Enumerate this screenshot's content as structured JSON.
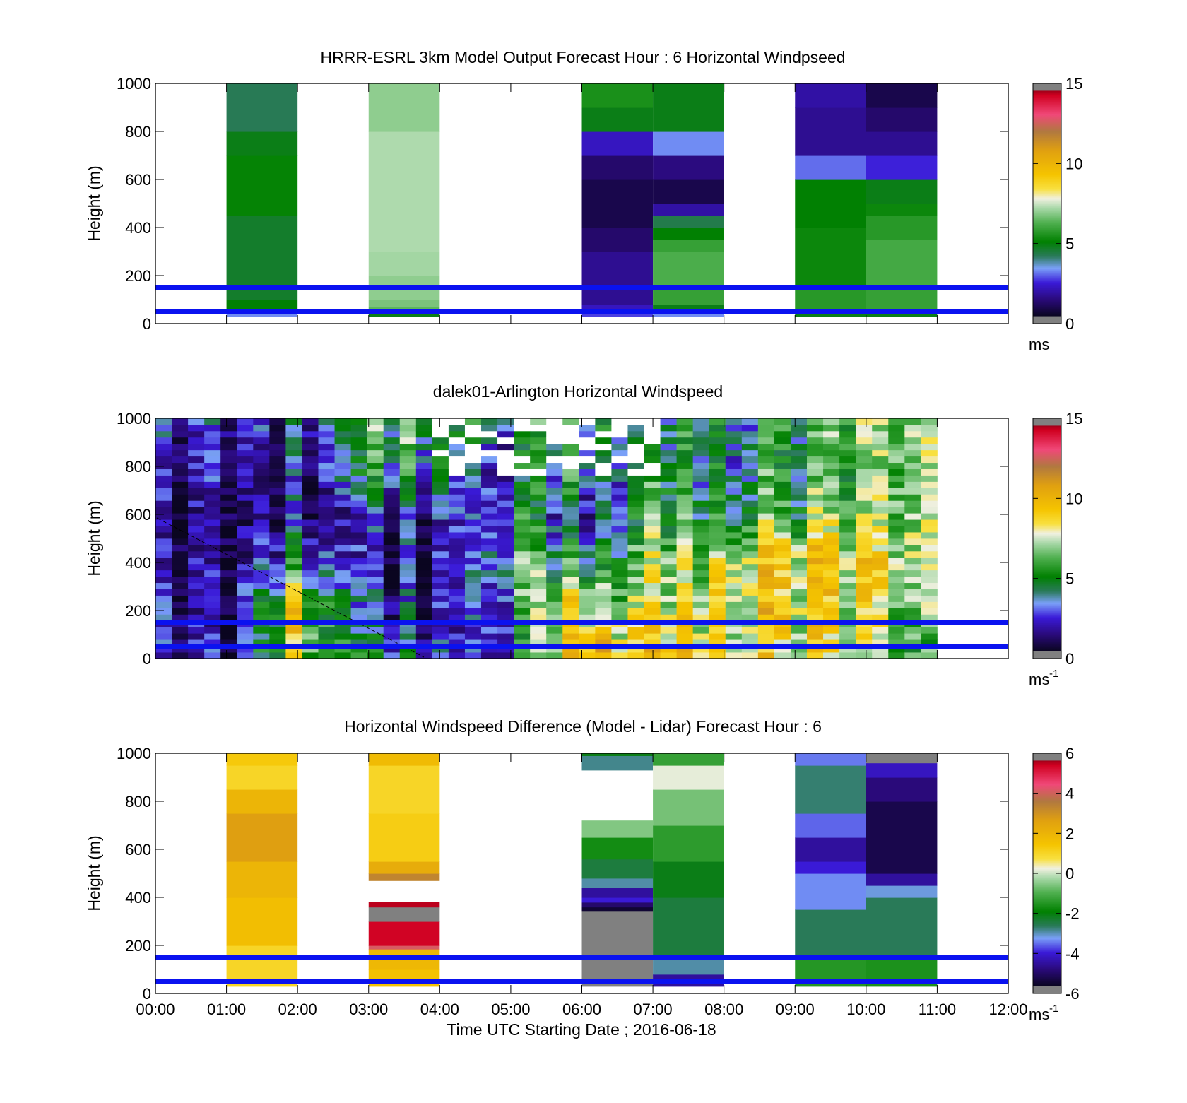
{
  "chart_data": [
    {
      "type": "heatmap",
      "title": "HRRR-ESRL 3km Model Output   Forecast Hour : 6 Horizontal Windpseed",
      "ylabel": "Height (m)",
      "xlabel": "",
      "ylim": [
        0,
        1000
      ],
      "y_ticks": [
        "0",
        "200",
        "400",
        "600",
        "800",
        "1000"
      ],
      "colorbar": {
        "ticks": [
          "0",
          "5",
          "10",
          "15"
        ],
        "range": [
          0,
          15
        ],
        "unit": "ms",
        "unit_sup": ""
      },
      "reference_lines_m": [
        50,
        150
      ],
      "columns": [
        {
          "x": [
            1,
            2
          ],
          "segments": [
            {
              "y": [
                30,
                50
              ],
              "v": 3.5
            },
            {
              "y": [
                50,
                100
              ],
              "v": 5.2
            },
            {
              "y": [
                100,
                450
              ],
              "v": 4.8
            },
            {
              "y": [
                450,
                700
              ],
              "v": 5.3
            },
            {
              "y": [
                700,
                800
              ],
              "v": 5.0
            },
            {
              "y": [
                800,
                1000
              ],
              "v": 4.4
            }
          ]
        },
        {
          "x": [
            3,
            4
          ],
          "segments": [
            {
              "y": [
                30,
                50
              ],
              "v": 5.0
            },
            {
              "y": [
                50,
                70
              ],
              "v": 6.5
            },
            {
              "y": [
                70,
                100
              ],
              "v": 6.8
            },
            {
              "y": [
                100,
                200
              ],
              "v": 7.0
            },
            {
              "y": [
                200,
                300
              ],
              "v": 7.2
            },
            {
              "y": [
                300,
                800
              ],
              "v": 7.3
            },
            {
              "y": [
                800,
                1000
              ],
              "v": 7.0
            }
          ]
        },
        {
          "x": [
            6,
            7
          ],
          "segments": [
            {
              "y": [
                30,
                60
              ],
              "v": 3.0
            },
            {
              "y": [
                60,
                80
              ],
              "v": 2.5
            },
            {
              "y": [
                80,
                300
              ],
              "v": 2.0
            },
            {
              "y": [
                300,
                400
              ],
              "v": 1.5
            },
            {
              "y": [
                400,
                600
              ],
              "v": 1.0
            },
            {
              "y": [
                600,
                700
              ],
              "v": 1.5
            },
            {
              "y": [
                700,
                800
              ],
              "v": 2.5
            },
            {
              "y": [
                800,
                900
              ],
              "v": 5.0
            },
            {
              "y": [
                900,
                1000
              ],
              "v": 5.6
            }
          ]
        },
        {
          "x": [
            7,
            8
          ],
          "segments": [
            {
              "y": [
                30,
                50
              ],
              "v": 3.5
            },
            {
              "y": [
                50,
                80
              ],
              "v": 5.0
            },
            {
              "y": [
                80,
                150
              ],
              "v": 6.0
            },
            {
              "y": [
                150,
                300
              ],
              "v": 6.3
            },
            {
              "y": [
                300,
                350
              ],
              "v": 6.0
            },
            {
              "y": [
                350,
                400
              ],
              "v": 5.2
            },
            {
              "y": [
                400,
                450
              ],
              "v": 4.5
            },
            {
              "y": [
                450,
                500
              ],
              "v": 2.2
            },
            {
              "y": [
                500,
                600
              ],
              "v": 1.0
            },
            {
              "y": [
                600,
                700
              ],
              "v": 1.8
            },
            {
              "y": [
                700,
                800
              ],
              "v": 3.5
            },
            {
              "y": [
                800,
                1000
              ],
              "v": 5.0
            }
          ]
        },
        {
          "x": [
            9,
            10
          ],
          "segments": [
            {
              "y": [
                30,
                50
              ],
              "v": 5.0
            },
            {
              "y": [
                50,
                150
              ],
              "v": 5.8
            },
            {
              "y": [
                150,
                400
              ],
              "v": 5.4
            },
            {
              "y": [
                400,
                600
              ],
              "v": 5.2
            },
            {
              "y": [
                600,
                700
              ],
              "v": 3.3
            },
            {
              "y": [
                700,
                900
              ],
              "v": 2.0
            },
            {
              "y": [
                900,
                1000
              ],
              "v": 2.2
            }
          ]
        },
        {
          "x": [
            10,
            11
          ],
          "segments": [
            {
              "y": [
                30,
                50
              ],
              "v": 5.0
            },
            {
              "y": [
                50,
                150
              ],
              "v": 6.0
            },
            {
              "y": [
                150,
                350
              ],
              "v": 6.2
            },
            {
              "y": [
                350,
                450
              ],
              "v": 5.8
            },
            {
              "y": [
                450,
                500
              ],
              "v": 5.4
            },
            {
              "y": [
                500,
                600
              ],
              "v": 5.0
            },
            {
              "y": [
                600,
                700
              ],
              "v": 2.8
            },
            {
              "y": [
                700,
                800
              ],
              "v": 2.0
            },
            {
              "y": [
                800,
                900
              ],
              "v": 1.5
            },
            {
              "y": [
                900,
                1000
              ],
              "v": 1.0
            }
          ]
        }
      ]
    },
    {
      "type": "heatmap",
      "title": "dalek01-Arlington  Horizontal Windspeed",
      "ylabel": "Height (m)",
      "xlabel": "",
      "ylim": [
        0,
        1000
      ],
      "y_ticks": [
        "0",
        "200",
        "400",
        "600",
        "800",
        "1000"
      ],
      "colorbar": {
        "ticks": [
          "0",
          "5",
          "10",
          "15"
        ],
        "range": [
          0,
          15
        ],
        "unit": "ms",
        "unit_sup": "-1"
      },
      "reference_lines_m": [
        50,
        150
      ],
      "x_range": [
        0,
        11
      ],
      "time_steps": 48,
      "height_levels": 38,
      "profile_hours": [
        0,
        1,
        2,
        3,
        4,
        5,
        6,
        7,
        8,
        9,
        10,
        11
      ],
      "profile_heights_m": [
        0,
        200,
        400,
        600,
        800,
        1000
      ],
      "profile_values": [
        [
          2.0,
          2.8,
          2.0,
          1.8,
          2.2,
          3.0
        ],
        [
          1.5,
          1.2,
          1.0,
          1.2,
          1.6,
          2.5
        ],
        [
          8.5,
          8.5,
          5.0,
          2.5,
          2.2,
          3.5
        ],
        [
          4.0,
          2.5,
          1.5,
          2.0,
          5.0,
          5.5
        ],
        [
          2.5,
          2.0,
          1.5,
          2.0,
          4.0,
          6.0
        ],
        [
          3.0,
          4.5,
          5.5,
          4.5,
          3.5,
          4.5
        ],
        [
          10.5,
          9.0,
          5.0,
          3.0,
          5.0,
          5.0
        ],
        [
          9.5,
          7.5,
          7.0,
          5.5,
          5.0,
          5.0
        ],
        [
          9.0,
          9.0,
          8.5,
          6.0,
          5.0,
          4.8
        ],
        [
          7.5,
          8.5,
          8.8,
          6.0,
          5.0,
          5.0
        ],
        [
          7.0,
          7.5,
          8.5,
          6.5,
          6.0,
          6.5
        ],
        [
          4.8,
          6.0,
          6.5,
          6.8,
          7.0,
          7.0
        ]
      ]
    },
    {
      "type": "heatmap",
      "title": "Horizontal Windspeed Difference (Model - Lidar) Forecast Hour : 6",
      "ylabel": "Height (m)",
      "xlabel": "Time UTC  Starting Date ; 2016-06-18",
      "ylim": [
        0,
        1000
      ],
      "y_ticks": [
        "0",
        "200",
        "400",
        "600",
        "800",
        "1000"
      ],
      "x_ticks": [
        "00:00",
        "01:00",
        "02:00",
        "03:00",
        "04:00",
        "05:00",
        "06:00",
        "07:00",
        "08:00",
        "09:00",
        "10:00",
        "11:00",
        "12:00"
      ],
      "colorbar": {
        "ticks": [
          "-6",
          "-4",
          "-2",
          "0",
          "2",
          "4",
          "6"
        ],
        "range": [
          -6,
          6
        ],
        "unit": "ms",
        "unit_sup": "-1"
      },
      "reference_lines_m": [
        50,
        150
      ],
      "columns": [
        {
          "x": [
            1,
            2
          ],
          "segments": [
            {
              "y": [
                30,
                200
              ],
              "v": 1.0
            },
            {
              "y": [
                200,
                400
              ],
              "v": 1.6
            },
            {
              "y": [
                400,
                550
              ],
              "v": 1.9
            },
            {
              "y": [
                550,
                750
              ],
              "v": 2.6
            },
            {
              "y": [
                750,
                850
              ],
              "v": 1.9
            },
            {
              "y": [
                850,
                950
              ],
              "v": 1.0
            },
            {
              "y": [
                950,
                1000
              ],
              "v": 1.3
            }
          ]
        },
        {
          "x": [
            3,
            4
          ],
          "segments": [
            {
              "y": [
                30,
                100
              ],
              "v": 1.5
            },
            {
              "y": [
                100,
                185
              ],
              "v": 1.8
            },
            {
              "y": [
                185,
                200
              ],
              "v": 4.0
            },
            {
              "y": [
                200,
                300
              ],
              "v": 5.2
            },
            {
              "y": [
                300,
                360
              ],
              "v": 6.0
            },
            {
              "y": [
                360,
                380
              ],
              "v": 5.5
            },
            {
              "y": [
                470,
                500
              ],
              "v": 3.2
            },
            {
              "y": [
                500,
                550
              ],
              "v": 2.2
            },
            {
              "y": [
                550,
                750
              ],
              "v": 1.2
            },
            {
              "y": [
                750,
                950
              ],
              "v": 1.0
            },
            {
              "y": [
                950,
                1000
              ],
              "v": 1.7
            }
          ]
        },
        {
          "x": [
            6,
            7
          ],
          "segments": [
            {
              "y": [
                30,
                345
              ],
              "v": 6.0
            },
            {
              "y": [
                345,
                360
              ],
              "v": -5.5
            },
            {
              "y": [
                360,
                380
              ],
              "v": -4.8
            },
            {
              "y": [
                380,
                400
              ],
              "v": -3.8
            },
            {
              "y": [
                400,
                440
              ],
              "v": -4.3
            },
            {
              "y": [
                440,
                480
              ],
              "v": -2.8
            },
            {
              "y": [
                480,
                560
              ],
              "v": -2.3
            },
            {
              "y": [
                560,
                650
              ],
              "v": -1.6
            },
            {
              "y": [
                650,
                720
              ],
              "v": -0.5
            },
            {
              "y": [
                930,
                990
              ],
              "v": -2.7
            },
            {
              "y": [
                990,
                1000
              ],
              "v": -2.0
            }
          ]
        },
        {
          "x": [
            7,
            8
          ],
          "segments": [
            {
              "y": [
                30,
                80
              ],
              "v": -4.3
            },
            {
              "y": [
                80,
                150
              ],
              "v": -2.8
            },
            {
              "y": [
                150,
                400
              ],
              "v": -2.3
            },
            {
              "y": [
                400,
                550
              ],
              "v": -2.0
            },
            {
              "y": [
                550,
                700
              ],
              "v": -1.3
            },
            {
              "y": [
                700,
                850
              ],
              "v": -0.6
            },
            {
              "y": [
                850,
                950
              ],
              "v": 0.2
            },
            {
              "y": [
                950,
                1000
              ],
              "v": -1.2
            }
          ]
        },
        {
          "x": [
            9,
            10
          ],
          "segments": [
            {
              "y": [
                30,
                150
              ],
              "v": -1.4
            },
            {
              "y": [
                150,
                350
              ],
              "v": -2.5
            },
            {
              "y": [
                350,
                500
              ],
              "v": -3.2
            },
            {
              "y": [
                500,
                550
              ],
              "v": -3.8
            },
            {
              "y": [
                550,
                650
              ],
              "v": -4.3
            },
            {
              "y": [
                650,
                750
              ],
              "v": -3.4
            },
            {
              "y": [
                750,
                950
              ],
              "v": -2.6
            },
            {
              "y": [
                950,
                1000
              ],
              "v": -3.3
            }
          ]
        },
        {
          "x": [
            10,
            11
          ],
          "segments": [
            {
              "y": [
                30,
                150
              ],
              "v": -1.5
            },
            {
              "y": [
                150,
                400
              ],
              "v": -2.5
            },
            {
              "y": [
                400,
                450
              ],
              "v": -3.0
            },
            {
              "y": [
                450,
                500
              ],
              "v": -4.3
            },
            {
              "y": [
                500,
                800
              ],
              "v": -5.2
            },
            {
              "y": [
                800,
                900
              ],
              "v": -4.6
            },
            {
              "y": [
                900,
                960
              ],
              "v": -4.0
            },
            {
              "y": [
                960,
                1000
              ],
              "v": -5.8
            }
          ]
        }
      ]
    }
  ]
}
